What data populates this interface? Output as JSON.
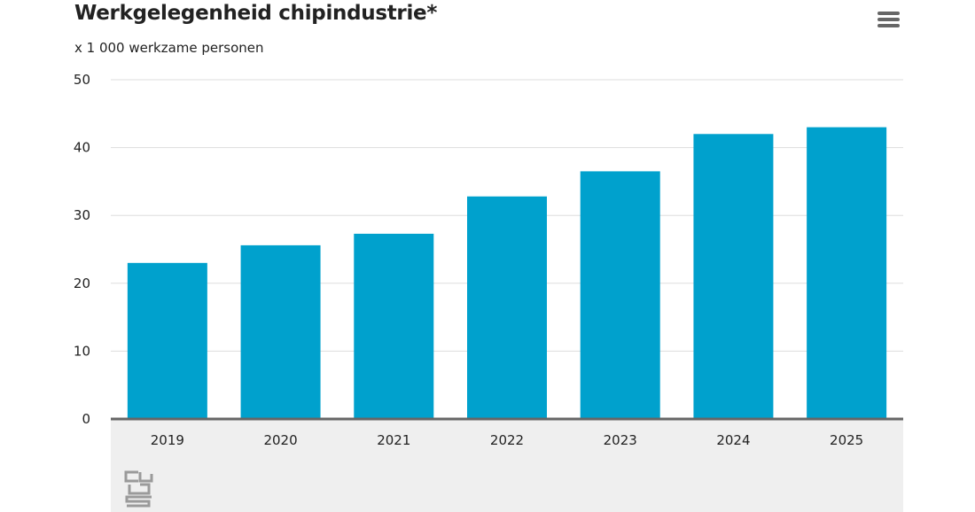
{
  "chart_data": {
    "type": "bar",
    "title": "Werkgelegenheid chipindustrie*",
    "subtitle": "x 1 000 werkzame personen",
    "categories": [
      "2019",
      "2020",
      "2021",
      "2022",
      "2023",
      "2024",
      "2025"
    ],
    "values": [
      23,
      25.6,
      27.3,
      32.8,
      36.5,
      42,
      43
    ],
    "ylim": [
      0,
      50
    ],
    "yticks": [
      "0",
      "10",
      "20",
      "30",
      "40",
      "50"
    ],
    "grid": true,
    "legend": "none",
    "bar_color": "#00a1cd",
    "grid_color": "#dddddd",
    "axis_color": "#666666"
  },
  "menu": {
    "icon": "hamburger-menu-icon"
  },
  "logo": {
    "icon": "cbs-logo-icon"
  }
}
